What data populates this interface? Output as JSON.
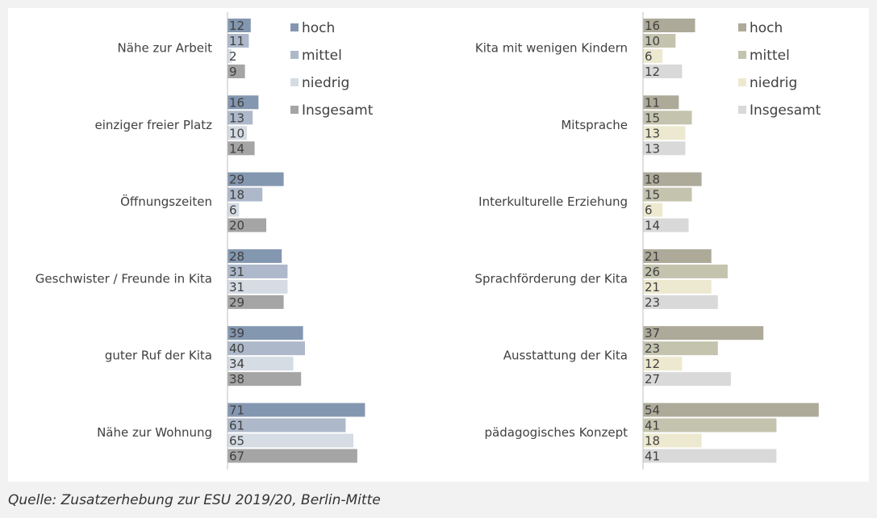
{
  "chart_data": [
    {
      "type": "bar",
      "orientation": "horizontal",
      "categories": [
        "Nähe zur Arbeit",
        "einziger freier Platz",
        "Öffnungszeiten",
        "Geschwister / Freunde in Kita",
        "guter Ruf der Kita",
        "Nähe zur Wohnung"
      ],
      "series": [
        {
          "name": "hoch",
          "color": "#8497b0",
          "values": [
            12,
            16,
            29,
            28,
            39,
            71
          ]
        },
        {
          "name": "mittel",
          "color": "#adb9ca",
          "values": [
            11,
            13,
            18,
            31,
            40,
            61
          ]
        },
        {
          "name": "niedrig",
          "color": "#d6dce4",
          "values": [
            2,
            10,
            6,
            31,
            34,
            65
          ]
        },
        {
          "name": "Insgesamt",
          "color": "#a5a5a5",
          "values": [
            9,
            14,
            20,
            29,
            38,
            67
          ]
        }
      ],
      "xlim": [
        0,
        80
      ],
      "legend": "upper right"
    },
    {
      "type": "bar",
      "orientation": "horizontal",
      "categories": [
        "Kita mit wenigen Kindern",
        "Mitsprache",
        "Interkulturelle Erziehung",
        "Sprachförderung der Kita",
        "Ausstattung der Kita",
        "pädagogisches Konzept"
      ],
      "series": [
        {
          "name": "hoch",
          "color": "#aeaa99",
          "values": [
            16,
            11,
            18,
            21,
            37,
            54
          ]
        },
        {
          "name": "mittel",
          "color": "#c4c3ae",
          "values": [
            10,
            15,
            15,
            26,
            23,
            41
          ]
        },
        {
          "name": "niedrig",
          "color": "#ede9d0",
          "values": [
            6,
            13,
            6,
            21,
            12,
            18
          ]
        },
        {
          "name": "Insgesamt",
          "color": "#d9d9d9",
          "values": [
            12,
            13,
            14,
            23,
            27,
            41
          ]
        }
      ],
      "xlim": [
        0,
        60
      ],
      "legend": "upper right"
    }
  ],
  "source": "Quelle: Zusatzerhebung zur ESU 2019/20, Berlin-Mitte"
}
